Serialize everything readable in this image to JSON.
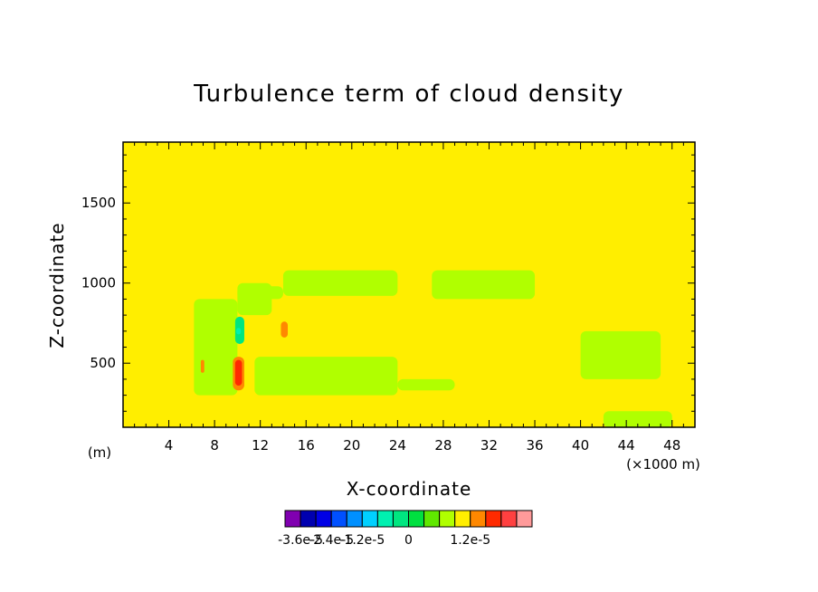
{
  "chart_data": {
    "type": "heatmap",
    "title": "Turbulence term of cloud density",
    "xlabel": "X-coordinate",
    "ylabel": "Z-coordinate",
    "x_unit_label": "(×1000 m)",
    "y_unit_label": "(m)",
    "xlim": [
      0,
      50
    ],
    "ylim": [
      100,
      1880
    ],
    "x_ticks": [
      "4",
      "8",
      "12",
      "16",
      "20",
      "24",
      "28",
      "32",
      "36",
      "40",
      "44",
      "48"
    ],
    "y_ticks": [
      "500",
      "1000",
      "1500"
    ],
    "background_level_color": "#ffee00",
    "colorbar": {
      "colors": [
        "#8000b0",
        "#0000b0",
        "#0000e6",
        "#0050ff",
        "#0090ff",
        "#00d0ff",
        "#00f0b0",
        "#00e680",
        "#00e040",
        "#60e800",
        "#b0ff00",
        "#ffee00",
        "#ff8800",
        "#ff2a00",
        "#ff4040",
        "#ff9a9a"
      ],
      "labels": [
        "-3.6e-5",
        "-2.4e-5",
        "-1.2e-5",
        "0",
        "1.2e-5"
      ]
    },
    "regions": [
      {
        "level": "#b0ff00",
        "x": [
          14,
          24
        ],
        "z": [
          920,
          1080
        ]
      },
      {
        "level": "#b0ff00",
        "x": [
          10,
          14
        ],
        "z": [
          900,
          980
        ]
      },
      {
        "level": "#b0ff00",
        "x": [
          11.5,
          24
        ],
        "z": [
          300,
          540
        ]
      },
      {
        "level": "#b0ff00",
        "x": [
          6.2,
          10
        ],
        "z": [
          300,
          900
        ]
      },
      {
        "level": "#b0ff00",
        "x": [
          24,
          29
        ],
        "z": [
          330,
          400
        ]
      },
      {
        "level": "#b0ff00",
        "x": [
          27,
          36
        ],
        "z": [
          900,
          1080
        ]
      },
      {
        "level": "#b0ff00",
        "x": [
          40,
          47
        ],
        "z": [
          400,
          700
        ]
      },
      {
        "level": "#b0ff00",
        "x": [
          42,
          48
        ],
        "z": [
          100,
          200
        ]
      },
      {
        "level": "#b0ff00",
        "x": [
          10,
          13
        ],
        "z": [
          800,
          1000
        ]
      },
      {
        "level": "#00e680",
        "x": [
          9.8,
          10.6
        ],
        "z": [
          620,
          790
        ]
      },
      {
        "level": "#00f0b0",
        "x": [
          9.9,
          10.3
        ],
        "z": [
          680,
          720
        ]
      },
      {
        "level": "#ff8800",
        "x": [
          9.6,
          10.6
        ],
        "z": [
          330,
          540
        ]
      },
      {
        "level": "#ff2a00",
        "x": [
          9.8,
          10.4
        ],
        "z": [
          360,
          520
        ]
      },
      {
        "level": "#ff8800",
        "x": [
          13.8,
          14.4
        ],
        "z": [
          660,
          760
        ]
      },
      {
        "level": "#ff8800",
        "x": [
          6.8,
          7.1
        ],
        "z": [
          440,
          520
        ]
      }
    ]
  }
}
